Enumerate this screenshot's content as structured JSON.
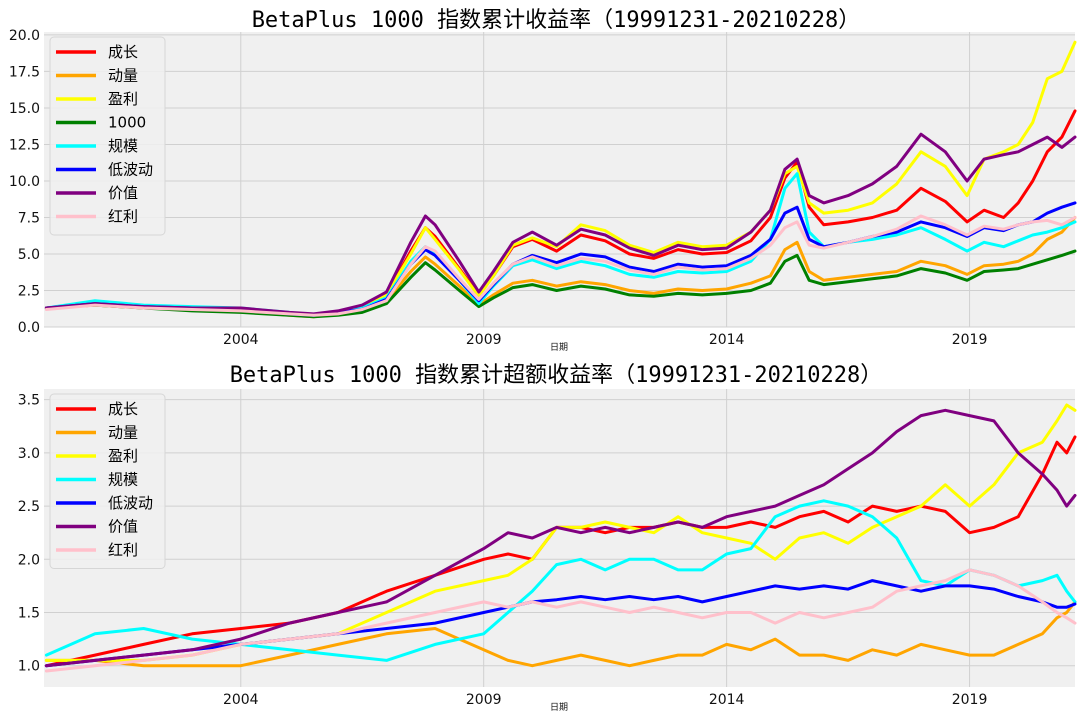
{
  "xlabel": "日期",
  "chart_data": [
    {
      "type": "line",
      "title": "BetaPlus 1000 指数累计收益率（19991231-20210228）",
      "xlabel": "日期",
      "xlim": [
        1999.95,
        2021.17
      ],
      "ylim": [
        0,
        20.2
      ],
      "yticks": [
        "0.0",
        "2.5",
        "5.0",
        "7.5",
        "10.0",
        "12.5",
        "15.0",
        "17.5",
        "20.0"
      ],
      "yticks_values": [
        0,
        2.5,
        5,
        7.5,
        10,
        12.5,
        15,
        17.5,
        20
      ],
      "xticks": [
        "2004",
        "2009",
        "2014",
        "2019"
      ],
      "xticks_values": [
        2004,
        2009,
        2014,
        2019
      ],
      "grid": true,
      "legend_position": "top-left",
      "x": [
        2000,
        2001,
        2002,
        2003,
        2004,
        2005,
        2005.5,
        2006,
        2006.5,
        2007,
        2007.5,
        2007.8,
        2008,
        2008.5,
        2008.9,
        2009.2,
        2009.6,
        2010,
        2010.5,
        2011,
        2011.5,
        2012,
        2012.5,
        2013,
        2013.5,
        2014,
        2014.5,
        2014.9,
        2015.2,
        2015.45,
        2015.7,
        2016,
        2016.5,
        2017,
        2017.5,
        2018,
        2018.5,
        2018.95,
        2019.3,
        2019.7,
        2020,
        2020.3,
        2020.6,
        2020.9,
        2021.17
      ],
      "series": [
        {
          "name": "成长",
          "color": "#ff0000",
          "values": [
            1.3,
            1.6,
            1.4,
            1.3,
            1.2,
            0.9,
            0.8,
            1.0,
            1.3,
            2.2,
            5.2,
            6.8,
            6.2,
            4.0,
            2.2,
            3.5,
            5.5,
            6.0,
            5.2,
            6.3,
            5.9,
            5.0,
            4.7,
            5.3,
            5.0,
            5.1,
            5.9,
            7.5,
            10.2,
            11.3,
            8.2,
            7.0,
            7.2,
            7.5,
            8.0,
            9.5,
            8.6,
            7.2,
            8.0,
            7.5,
            8.5,
            10.0,
            12.0,
            13.0,
            14.8
          ]
        },
        {
          "name": "动量",
          "color": "#ffa500",
          "values": [
            1.3,
            1.5,
            1.3,
            1.2,
            1.1,
            0.8,
            0.7,
            0.9,
            1.1,
            1.8,
            3.8,
            4.8,
            4.3,
            2.8,
            1.5,
            2.2,
            3.0,
            3.2,
            2.8,
            3.1,
            2.9,
            2.5,
            2.3,
            2.6,
            2.5,
            2.6,
            3.0,
            3.5,
            5.3,
            5.8,
            3.8,
            3.2,
            3.4,
            3.6,
            3.8,
            4.5,
            4.2,
            3.6,
            4.2,
            4.3,
            4.5,
            5.0,
            6.0,
            6.5,
            7.5
          ]
        },
        {
          "name": "盈利",
          "color": "#ffff00",
          "values": [
            1.3,
            1.6,
            1.4,
            1.3,
            1.2,
            0.9,
            0.8,
            1.0,
            1.3,
            2.2,
            5.0,
            6.8,
            6.0,
            3.9,
            2.1,
            3.5,
            5.6,
            6.1,
            5.5,
            7.0,
            6.6,
            5.6,
            5.1,
            5.8,
            5.5,
            5.6,
            6.5,
            8.0,
            10.5,
            11.0,
            8.5,
            7.8,
            8.0,
            8.5,
            9.8,
            12.0,
            11.0,
            9.0,
            11.5,
            12.0,
            12.5,
            14.0,
            17.0,
            17.5,
            19.5
          ]
        },
        {
          "name": "1000",
          "color": "#008000",
          "values": [
            1.3,
            1.5,
            1.3,
            1.1,
            1.0,
            0.8,
            0.7,
            0.8,
            1.0,
            1.6,
            3.4,
            4.4,
            3.9,
            2.5,
            1.4,
            2.0,
            2.7,
            2.9,
            2.5,
            2.8,
            2.6,
            2.2,
            2.1,
            2.3,
            2.2,
            2.3,
            2.5,
            3.0,
            4.5,
            4.9,
            3.2,
            2.9,
            3.1,
            3.3,
            3.5,
            4.0,
            3.7,
            3.2,
            3.8,
            3.9,
            4.0,
            4.3,
            4.6,
            4.9,
            5.2
          ]
        },
        {
          "name": "规模",
          "color": "#00ffff",
          "values": [
            1.3,
            1.8,
            1.5,
            1.4,
            1.3,
            1.0,
            0.8,
            1.0,
            1.3,
            2.0,
            4.5,
            5.5,
            5.0,
            3.2,
            1.6,
            2.8,
            4.2,
            4.6,
            4.0,
            4.5,
            4.2,
            3.6,
            3.4,
            3.8,
            3.7,
            3.8,
            4.5,
            6.0,
            9.5,
            10.5,
            6.5,
            5.5,
            5.8,
            6.0,
            6.3,
            6.8,
            6.0,
            5.2,
            5.8,
            5.5,
            5.9,
            6.3,
            6.5,
            6.8,
            7.2
          ]
        },
        {
          "name": "低波动",
          "color": "#0000ff",
          "values": [
            1.3,
            1.6,
            1.4,
            1.3,
            1.2,
            0.9,
            0.8,
            1.0,
            1.2,
            1.9,
            4.3,
            5.3,
            4.9,
            3.2,
            1.8,
            2.9,
            4.3,
            4.9,
            4.4,
            5.0,
            4.8,
            4.1,
            3.8,
            4.3,
            4.1,
            4.2,
            4.9,
            6.0,
            7.8,
            8.2,
            6.0,
            5.5,
            5.8,
            6.2,
            6.5,
            7.2,
            6.8,
            6.2,
            6.8,
            6.6,
            7.0,
            7.2,
            7.8,
            8.2,
            8.5
          ]
        },
        {
          "name": "价值",
          "color": "#800080",
          "values": [
            1.3,
            1.6,
            1.4,
            1.3,
            1.3,
            1.0,
            0.9,
            1.1,
            1.5,
            2.4,
            5.8,
            7.6,
            7.0,
            4.5,
            2.4,
            3.8,
            5.8,
            6.5,
            5.6,
            6.7,
            6.3,
            5.4,
            4.9,
            5.6,
            5.3,
            5.4,
            6.5,
            8.0,
            10.8,
            11.5,
            9.0,
            8.5,
            9.0,
            9.8,
            11.0,
            13.2,
            12.0,
            10.0,
            11.5,
            11.8,
            12.0,
            12.5,
            13.0,
            12.3,
            13.0
          ]
        },
        {
          "name": "红利",
          "color": "#ffc0cb",
          "values": [
            1.2,
            1.5,
            1.3,
            1.2,
            1.1,
            0.9,
            0.8,
            0.9,
            1.2,
            1.8,
            4.3,
            5.5,
            5.2,
            3.3,
            1.9,
            3.0,
            4.3,
            4.8,
            4.2,
            4.7,
            4.5,
            3.9,
            3.6,
            4.1,
            3.9,
            4.0,
            4.7,
            5.6,
            6.8,
            7.2,
            5.6,
            5.4,
            5.8,
            6.2,
            6.7,
            7.6,
            7.0,
            6.3,
            6.9,
            6.7,
            7.0,
            7.2,
            7.3,
            7.0,
            7.5
          ]
        }
      ]
    },
    {
      "type": "line",
      "title": "BetaPlus 1000 指数累计超额收益率（19991231-20210228）",
      "xlabel": "日期",
      "xlim": [
        1999.95,
        2021.17
      ],
      "ylim": [
        0.8,
        3.6
      ],
      "yticks": [
        "1.0",
        "1.5",
        "2.0",
        "2.5",
        "3.0",
        "3.5"
      ],
      "yticks_values": [
        1.0,
        1.5,
        2.0,
        2.5,
        3.0,
        3.5
      ],
      "xticks": [
        "2004",
        "2009",
        "2014",
        "2019"
      ],
      "xticks_values": [
        2004,
        2009,
        2014,
        2019
      ],
      "grid": true,
      "legend_position": "top-left",
      "x": [
        2000,
        2001,
        2002,
        2003,
        2004,
        2005,
        2006,
        2007,
        2008,
        2009,
        2009.5,
        2010,
        2010.5,
        2011,
        2011.5,
        2012,
        2012.5,
        2013,
        2013.5,
        2014,
        2014.5,
        2015,
        2015.5,
        2016,
        2016.5,
        2017,
        2017.5,
        2018,
        2018.5,
        2019,
        2019.5,
        2020,
        2020.5,
        2020.8,
        2021,
        2021.17
      ],
      "series": [
        {
          "name": "成长",
          "color": "#ff0000",
          "values": [
            1.0,
            1.1,
            1.2,
            1.3,
            1.35,
            1.4,
            1.5,
            1.7,
            1.85,
            2.0,
            2.05,
            2.0,
            2.3,
            2.3,
            2.25,
            2.3,
            2.3,
            2.35,
            2.3,
            2.3,
            2.35,
            2.3,
            2.4,
            2.45,
            2.35,
            2.5,
            2.45,
            2.5,
            2.45,
            2.25,
            2.3,
            2.4,
            2.8,
            3.1,
            3.0,
            3.15
          ]
        },
        {
          "name": "动量",
          "color": "#ffa500",
          "values": [
            1.05,
            1.05,
            1.0,
            1.0,
            1.0,
            1.1,
            1.2,
            1.3,
            1.35,
            1.15,
            1.05,
            1.0,
            1.05,
            1.1,
            1.05,
            1.0,
            1.05,
            1.1,
            1.1,
            1.2,
            1.15,
            1.25,
            1.1,
            1.1,
            1.05,
            1.15,
            1.1,
            1.2,
            1.15,
            1.1,
            1.1,
            1.2,
            1.3,
            1.45,
            1.5,
            1.6
          ]
        },
        {
          "name": "盈利",
          "color": "#ffff00",
          "values": [
            1.05,
            1.05,
            1.05,
            1.1,
            1.2,
            1.25,
            1.3,
            1.5,
            1.7,
            1.8,
            1.85,
            2.0,
            2.3,
            2.3,
            2.35,
            2.3,
            2.25,
            2.4,
            2.25,
            2.2,
            2.15,
            2.0,
            2.2,
            2.25,
            2.15,
            2.3,
            2.4,
            2.5,
            2.7,
            2.5,
            2.7,
            3.0,
            3.1,
            3.3,
            3.45,
            3.4
          ]
        },
        {
          "name": "规模",
          "color": "#00ffff",
          "values": [
            1.1,
            1.3,
            1.35,
            1.25,
            1.2,
            1.15,
            1.1,
            1.05,
            1.2,
            1.3,
            1.5,
            1.7,
            1.95,
            2.0,
            1.9,
            2.0,
            2.0,
            1.9,
            1.9,
            2.05,
            2.1,
            2.4,
            2.5,
            2.55,
            2.5,
            2.4,
            2.2,
            1.8,
            1.75,
            1.9,
            1.85,
            1.75,
            1.8,
            1.85,
            1.7,
            1.6
          ]
        },
        {
          "name": "低波动",
          "color": "#0000ff",
          "values": [
            1.0,
            1.05,
            1.1,
            1.15,
            1.2,
            1.25,
            1.3,
            1.35,
            1.4,
            1.5,
            1.55,
            1.6,
            1.62,
            1.65,
            1.62,
            1.65,
            1.62,
            1.65,
            1.6,
            1.65,
            1.7,
            1.75,
            1.72,
            1.75,
            1.72,
            1.8,
            1.75,
            1.7,
            1.75,
            1.75,
            1.72,
            1.65,
            1.6,
            1.55,
            1.55,
            1.58
          ]
        },
        {
          "name": "价值",
          "color": "#800080",
          "values": [
            1.0,
            1.05,
            1.1,
            1.15,
            1.25,
            1.4,
            1.5,
            1.6,
            1.85,
            2.1,
            2.25,
            2.2,
            2.3,
            2.25,
            2.3,
            2.25,
            2.3,
            2.35,
            2.3,
            2.4,
            2.45,
            2.5,
            2.6,
            2.7,
            2.85,
            3.0,
            3.2,
            3.35,
            3.4,
            3.35,
            3.3,
            3.0,
            2.8,
            2.65,
            2.5,
            2.6
          ]
        },
        {
          "name": "红利",
          "color": "#ffc0cb",
          "values": [
            0.95,
            1.0,
            1.05,
            1.1,
            1.2,
            1.25,
            1.3,
            1.4,
            1.5,
            1.6,
            1.55,
            1.6,
            1.55,
            1.6,
            1.55,
            1.5,
            1.55,
            1.5,
            1.45,
            1.5,
            1.5,
            1.4,
            1.5,
            1.45,
            1.5,
            1.55,
            1.7,
            1.75,
            1.8,
            1.9,
            1.85,
            1.75,
            1.6,
            1.5,
            1.45,
            1.4
          ]
        }
      ]
    }
  ]
}
